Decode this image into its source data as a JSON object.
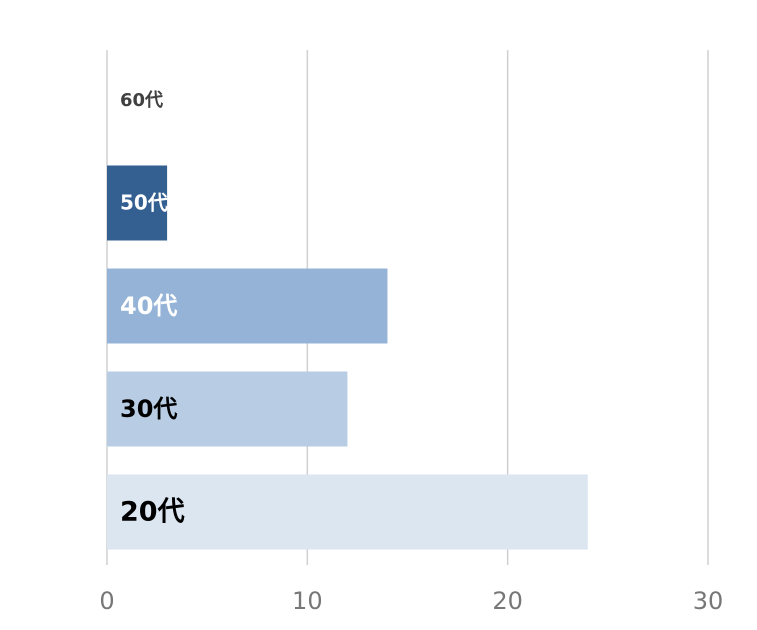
{
  "chart_data": {
    "type": "bar",
    "orientation": "horizontal",
    "categories": [
      "60代",
      "50代",
      "40代",
      "30代",
      "20代"
    ],
    "values": [
      0,
      3,
      14,
      12,
      24
    ],
    "colors": [
      "#17375e",
      "#335f91",
      "#95b3d7",
      "#b8cce4",
      "#dce6f1"
    ],
    "label_colors": [
      "#404040",
      "#ffffff",
      "#ffffff",
      "#000000",
      "#000000"
    ],
    "xlim": [
      0,
      30
    ],
    "xticks": [
      0,
      10,
      20,
      30
    ],
    "grid": true
  }
}
